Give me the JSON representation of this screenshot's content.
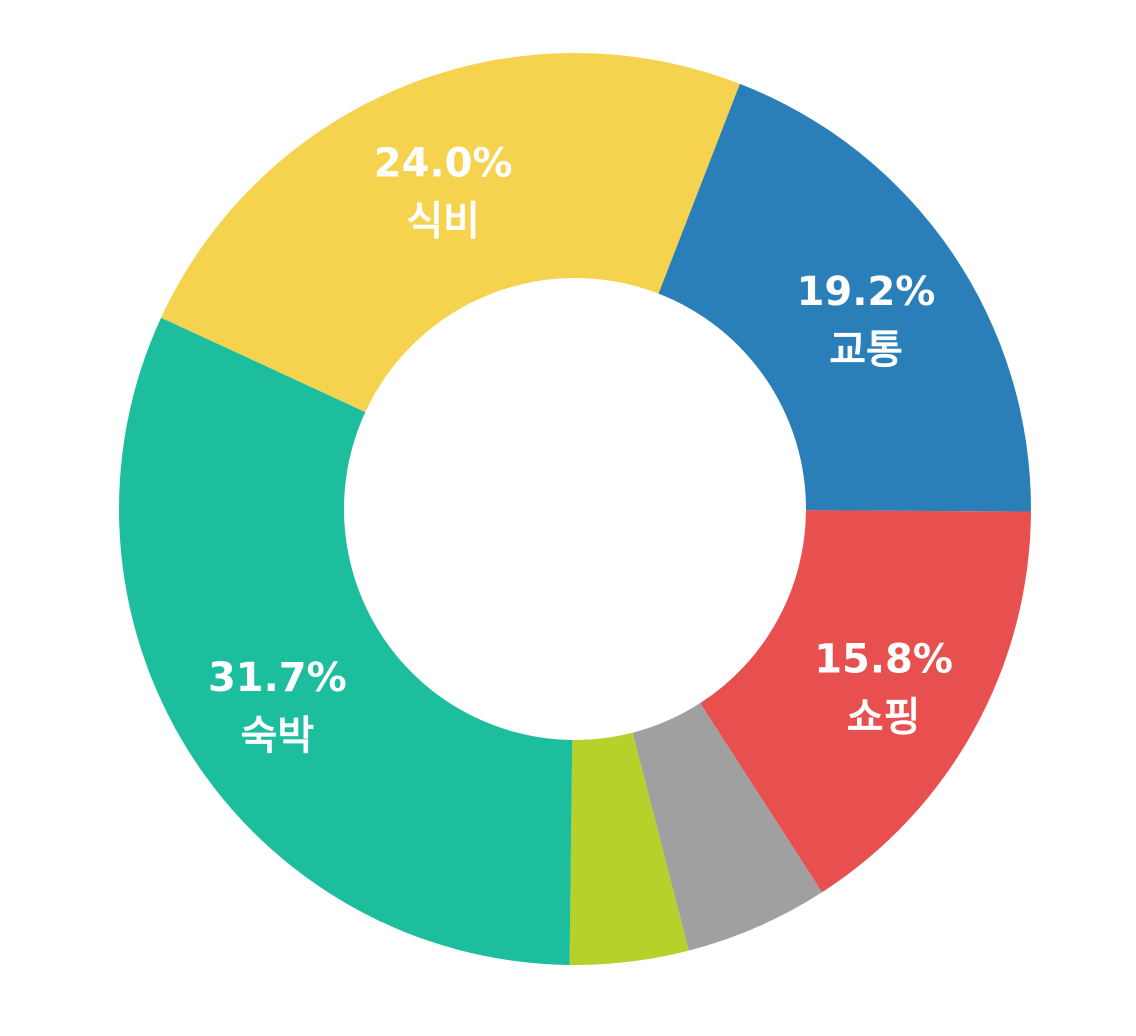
{
  "chart_data": {
    "type": "pie",
    "variant": "donut",
    "title": "",
    "legend": "none",
    "slices": [
      {
        "label": "식비",
        "percent_text": "24.0%",
        "value": 24.0,
        "color": "#F6D34F"
      },
      {
        "label": "교통",
        "percent_text": "19.2%",
        "value": 19.2,
        "color": "#2A7FB8"
      },
      {
        "label": "쇼핑",
        "percent_text": "15.8%",
        "value": 15.8,
        "color": "#E85050"
      },
      {
        "label": "",
        "percent_text": "",
        "value": 5.1,
        "color": "#A0A0A0"
      },
      {
        "label": "",
        "percent_text": "",
        "value": 4.2,
        "color": "#B5D12A"
      },
      {
        "label": "숙박",
        "percent_text": "31.7%",
        "value": 31.7,
        "color": "#1DBE9E"
      }
    ]
  }
}
